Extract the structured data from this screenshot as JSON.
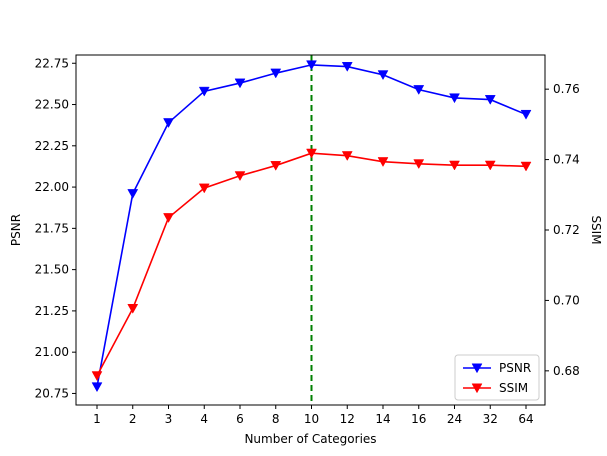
{
  "chart_data": {
    "type": "line",
    "categories": [
      "1",
      "2",
      "3",
      "4",
      "6",
      "8",
      "10",
      "12",
      "14",
      "16",
      "24",
      "32",
      "64"
    ],
    "xlabel": "Number of Categories",
    "ylabel_left": "PSNR",
    "ylabel_right": "SSIM",
    "ylim_left": [
      20.68,
      22.8
    ],
    "ylim_right": [
      0.6703,
      0.7697
    ],
    "yticks_left": [
      "20.75",
      "21.00",
      "21.25",
      "21.50",
      "21.75",
      "22.00",
      "22.25",
      "22.50",
      "22.75"
    ],
    "yticks_right": [
      "0.68",
      "0.70",
      "0.72",
      "0.74",
      "0.76"
    ],
    "grid": false,
    "legend_position": "lower-right",
    "vline": {
      "category": "10",
      "color": "#008000",
      "style": "dashed"
    },
    "series": [
      {
        "name": "PSNR",
        "axis": "left",
        "color": "#0000ff",
        "marker": "triangle-down",
        "values": [
          20.79,
          21.96,
          22.39,
          22.58,
          22.63,
          22.69,
          22.74,
          22.73,
          22.68,
          22.59,
          22.54,
          22.53,
          22.44
        ]
      },
      {
        "name": "SSIM",
        "axis": "right",
        "color": "#ff0000",
        "marker": "triangle-down",
        "values": [
          0.6786,
          0.6977,
          0.7235,
          0.7319,
          0.7354,
          0.7383,
          0.7418,
          0.7411,
          0.7394,
          0.7388,
          0.7384,
          0.7384,
          0.7381
        ]
      }
    ]
  }
}
